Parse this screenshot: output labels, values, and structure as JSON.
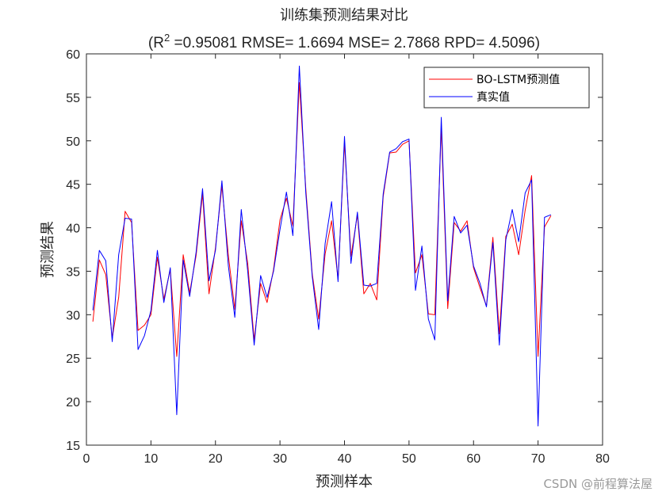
{
  "chart_data": {
    "type": "line",
    "title": "训练集预测结果对比",
    "subtitle": {
      "r_prefix": "(R",
      "r_sup": "2",
      "rest": " =0.95081 RMSE= 1.6694 MSE= 2.7868 RPD= 4.5096)"
    },
    "xlabel": "预测样本",
    "ylabel": "预测结果",
    "xlim": [
      0,
      80
    ],
    "ylim": [
      15,
      60
    ],
    "xticks": [
      0,
      10,
      20,
      30,
      40,
      50,
      60,
      70,
      80
    ],
    "yticks": [
      15,
      20,
      25,
      30,
      35,
      40,
      45,
      50,
      55,
      60
    ],
    "legend_position": "top-right",
    "series": [
      {
        "name": "BO-LSTM预测值",
        "color": "#ff0000",
        "x": [
          1,
          2,
          3,
          4,
          5,
          6,
          7,
          8,
          9,
          10,
          11,
          12,
          13,
          14,
          15,
          16,
          17,
          18,
          19,
          20,
          21,
          22,
          23,
          24,
          25,
          26,
          27,
          28,
          29,
          30,
          31,
          32,
          33,
          34,
          35,
          36,
          37,
          38,
          39,
          40,
          41,
          42,
          43,
          44,
          45,
          46,
          47,
          48,
          49,
          50,
          51,
          52,
          53,
          54,
          55,
          56,
          57,
          58,
          59,
          60,
          61,
          62,
          63,
          64,
          65,
          66,
          67,
          68,
          69,
          70,
          71,
          72
        ],
        "values": [
          29.2,
          36.3,
          34.6,
          27.3,
          32.0,
          41.9,
          40.6,
          28.2,
          28.8,
          30.0,
          36.6,
          31.8,
          35.2,
          25.2,
          36.9,
          32.5,
          36.8,
          43.9,
          32.4,
          37.7,
          44.8,
          36.8,
          30.6,
          40.8,
          35.9,
          27.1,
          33.6,
          31.4,
          35.2,
          40.9,
          43.4,
          40.2,
          56.7,
          44.5,
          34.7,
          29.5,
          37.0,
          40.8,
          34.1,
          49.8,
          36.7,
          41.5,
          32.4,
          33.6,
          31.7,
          43.6,
          48.6,
          48.7,
          49.6,
          50.0,
          34.8,
          36.9,
          30.1,
          30.0,
          51.6,
          30.7,
          40.6,
          39.6,
          40.8,
          35.4,
          33.1,
          31.0,
          38.9,
          27.8,
          39.0,
          40.4,
          36.9,
          42.0,
          46.0,
          25.2,
          40.1,
          41.4
        ]
      },
      {
        "name": "真实值",
        "color": "#0000ff",
        "x": [
          1,
          2,
          3,
          4,
          5,
          6,
          7,
          8,
          9,
          10,
          11,
          12,
          13,
          14,
          15,
          16,
          17,
          18,
          19,
          20,
          21,
          22,
          23,
          24,
          25,
          26,
          27,
          28,
          29,
          30,
          31,
          32,
          33,
          34,
          35,
          36,
          37,
          38,
          39,
          40,
          41,
          42,
          43,
          44,
          45,
          46,
          47,
          48,
          49,
          50,
          51,
          52,
          53,
          54,
          55,
          56,
          57,
          58,
          59,
          60,
          61,
          62,
          63,
          64,
          65,
          66,
          67,
          68,
          69,
          70,
          71,
          72
        ],
        "values": [
          30.5,
          37.4,
          36.2,
          26.9,
          36.9,
          41.1,
          41.0,
          26.0,
          27.6,
          30.5,
          37.4,
          31.4,
          35.4,
          18.5,
          36.3,
          32.1,
          37.2,
          44.5,
          33.9,
          37.4,
          45.4,
          35.6,
          29.7,
          42.1,
          35.0,
          26.5,
          34.5,
          32.0,
          35.0,
          39.8,
          44.1,
          39.1,
          58.6,
          44.0,
          34.4,
          28.3,
          38.2,
          43.0,
          33.8,
          50.5,
          35.9,
          41.8,
          33.4,
          33.3,
          33.6,
          43.9,
          48.7,
          49.1,
          49.9,
          50.2,
          32.8,
          37.9,
          29.5,
          27.1,
          52.7,
          31.6,
          41.3,
          39.4,
          40.3,
          35.6,
          33.6,
          30.9,
          38.3,
          26.5,
          38.6,
          42.1,
          38.4,
          44.0,
          45.5,
          17.2,
          41.2,
          41.5
        ]
      }
    ]
  },
  "watermark": "CSDN @前程算法屋"
}
